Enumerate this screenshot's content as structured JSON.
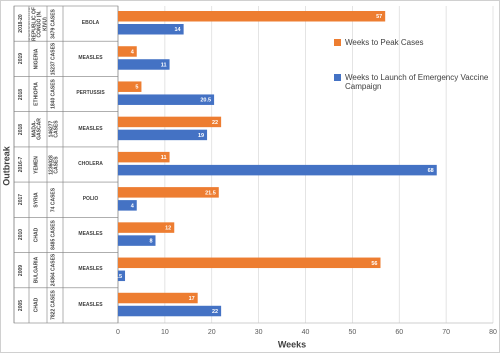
{
  "chart_data": {
    "type": "grouped-hbar",
    "x_label": "Weeks",
    "y_label": "Outbreak",
    "categories": [
      {
        "year": "2018-20",
        "country": "DEMOCRATIC REPUBLIC OF CONGO (N. KIVU)",
        "cases": "3479 CASES",
        "disease": "EBOLA"
      },
      {
        "year": "2019",
        "country": "NIGERIA",
        "cases": "15237 CASES",
        "disease": "MEASLES"
      },
      {
        "year": "2018",
        "country": "ETHIOPIA",
        "cases": "1840 CASES",
        "disease": "PERTUSSIS"
      },
      {
        "year": "2018",
        "country": "MADA-GASCAR",
        "cases": "146277 CASES",
        "disease": "MEASLES"
      },
      {
        "year": "2016-7",
        "country": "YEMEN",
        "cases": "1236028 CASES",
        "disease": "CHOLERA"
      },
      {
        "year": "2017",
        "country": "SYRIA",
        "cases": "74 CASES",
        "disease": "POLIO"
      },
      {
        "year": "2010",
        "country": "CHAD",
        "cases": "8485 CASES",
        "disease": "MEASLES"
      },
      {
        "year": "2009",
        "country": "BULGARIA",
        "cases": "24364 CASES",
        "disease": "MEASLES"
      },
      {
        "year": "2005",
        "country": "CHAD",
        "cases": "7822 CASES",
        "disease": "MEASLES"
      }
    ],
    "series": [
      {
        "name": "Weeks to Peak Cases",
        "color": "#ed7d31",
        "values": [
          57,
          4,
          5,
          22,
          11,
          21.5,
          12,
          56,
          17
        ]
      },
      {
        "name": "Weeks to Launch of Emergency Vaccine Campaign",
        "color": "#4472c4",
        "values": [
          14,
          11,
          20.5,
          19,
          68,
          4,
          8,
          1.5,
          22
        ]
      }
    ],
    "xlim": [
      0,
      80
    ],
    "xticks": [
      0,
      10,
      20,
      30,
      40,
      50,
      60,
      70,
      80
    ],
    "grid": true
  }
}
